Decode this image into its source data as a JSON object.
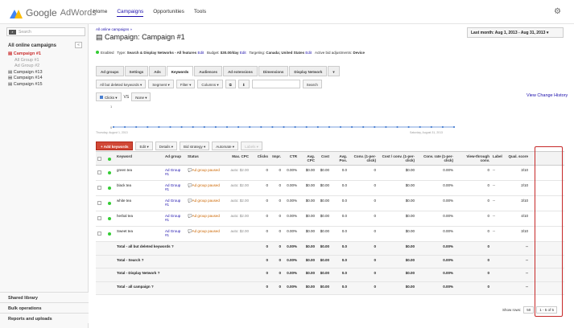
{
  "header": {
    "logo_google": "Google",
    "logo_adwords": "AdWords",
    "nav": [
      "Home",
      "Campaigns",
      "Opportunities",
      "Tools"
    ],
    "active_nav": "Campaigns"
  },
  "sidebar": {
    "search_placeholder": "Search",
    "title": "All online campaigns",
    "collapse": "«",
    "campaigns": [
      {
        "label": "Campaign #1",
        "active": true,
        "adgroups": [
          "All Group #1",
          "Ad Group #2"
        ]
      },
      {
        "label": "Campaign #13",
        "active": false,
        "adgroups": []
      },
      {
        "label": "Campaign #14",
        "active": false,
        "adgroups": []
      },
      {
        "label": "Campaign #15",
        "active": false,
        "adgroups": []
      }
    ],
    "bottom": [
      "Shared library",
      "Bulk operations",
      "Reports and uploads"
    ]
  },
  "main": {
    "breadcrumb": "All online campaigns »",
    "title_prefix": "Campaign:",
    "title": "Campaign #1",
    "date_range": "Last month: Aug 1, 2013 - Aug 31, 2013",
    "status": {
      "enabled": "Enabled",
      "type_label": "Type:",
      "type": "Search & Display Networks - All features",
      "edit1": "Edit",
      "budget_label": "Budget:",
      "budget": "$30.00/day",
      "edit2": "Edit",
      "targeting_label": "Targeting:",
      "targeting": "Canada; United States",
      "edit3": "Edit",
      "active_bid": "Active bid adjustments:",
      "device": "Device"
    },
    "tabs": [
      "Ad groups",
      "Settings",
      "Ads",
      "Keywords",
      "Audiences",
      "Ad extensions",
      "Dimensions",
      "Display Network",
      "▾"
    ],
    "active_tab": "Keywords",
    "toolbar": [
      "All but deleted keywords ▾",
      "Segment ▾",
      "Filter ▾",
      "Columns ▾",
      "⧉",
      "⬇"
    ],
    "search_button": "Search",
    "chart_metric": "Clicks ▾",
    "vs": "VS",
    "compare_metric": "None ▾",
    "view_history": "View Change History",
    "chart_start": "Thursday, August 1, 2013",
    "chart_end": "Saturday, August 31, 2013",
    "actions": {
      "add": "+ Add keywords",
      "edit": "Edit ▾",
      "details": "Details ▾",
      "bid": "Bid strategy ▾",
      "automate": "Automate ▾",
      "labels": "Labels ▾"
    }
  },
  "table": {
    "headers": {
      "keyword": "Keyword",
      "adgroup": "Ad group",
      "status": "Status",
      "maxcpc": "Max. CPC",
      "clicks": "Clicks",
      "impr": "Impr.",
      "ctr": "CTR",
      "avgcpc": "Avg. CPC",
      "cost": "Cost",
      "pos": "Avg. Pos.",
      "conv": "Conv. (1-per-click)",
      "cpc": "Cost / conv. (1-per-click)",
      "rate": "Conv. rate (1-per-click)",
      "vtc": "View-through conv.",
      "labels": "Labels",
      "qs": "Qual. score"
    },
    "rows": [
      {
        "keyword": "green tea",
        "adgroup": "Ad Group #1",
        "status": "Ad group paused",
        "maxcpc": "auto: $2.00",
        "clicks": "0",
        "impr": "0",
        "ctr": "0.00%",
        "avgcpc": "$0.00",
        "cost": "$0.00",
        "pos": "0.0",
        "conv": "0",
        "cpc": "$0.00",
        "rate": "0.00%",
        "vtc": "0",
        "labels": "--",
        "qs": "3/10"
      },
      {
        "keyword": "black tea",
        "adgroup": "Ad Group #1",
        "status": "Ad group paused",
        "maxcpc": "auto: $2.00",
        "clicks": "0",
        "impr": "0",
        "ctr": "0.00%",
        "avgcpc": "$0.00",
        "cost": "$0.00",
        "pos": "0.0",
        "conv": "0",
        "cpc": "$0.00",
        "rate": "0.00%",
        "vtc": "0",
        "labels": "--",
        "qs": "2/10"
      },
      {
        "keyword": "white tea",
        "adgroup": "Ad Group #1",
        "status": "Ad group paused",
        "maxcpc": "auto: $2.00",
        "clicks": "0",
        "impr": "0",
        "ctr": "0.00%",
        "avgcpc": "$0.00",
        "cost": "$0.00",
        "pos": "0.0",
        "conv": "0",
        "cpc": "$0.00",
        "rate": "0.00%",
        "vtc": "0",
        "labels": "--",
        "qs": "3/10"
      },
      {
        "keyword": "herbal tea",
        "adgroup": "Ad Group #1",
        "status": "Ad group paused",
        "maxcpc": "auto: $2.00",
        "clicks": "0",
        "impr": "0",
        "ctr": "0.00%",
        "avgcpc": "$0.00",
        "cost": "$0.00",
        "pos": "0.0",
        "conv": "0",
        "cpc": "$0.00",
        "rate": "0.00%",
        "vtc": "0",
        "labels": "--",
        "qs": "4/10"
      },
      {
        "keyword": "Sweet tea",
        "adgroup": "Ad Group #1",
        "status": "Ad group paused",
        "maxcpc": "auto: $2.00",
        "clicks": "0",
        "impr": "0",
        "ctr": "0.00%",
        "avgcpc": "$0.00",
        "cost": "$0.00",
        "pos": "0.0",
        "conv": "0",
        "cpc": "$0.00",
        "rate": "0.00%",
        "vtc": "0",
        "labels": "--",
        "qs": "3/10"
      }
    ],
    "totals": [
      {
        "label": "Total - all but deleted keywords",
        "clicks": "0",
        "impr": "0",
        "ctr": "0.00%",
        "avgcpc": "$0.00",
        "cost": "$0.00",
        "pos": "0.0",
        "conv": "0",
        "cpc": "$0.00",
        "rate": "0.00%",
        "vtc": "0",
        "qs": "--"
      },
      {
        "label": "Total - Search",
        "clicks": "0",
        "impr": "0",
        "ctr": "0.00%",
        "avgcpc": "$0.00",
        "cost": "$0.00",
        "pos": "0.0",
        "conv": "0",
        "cpc": "$0.00",
        "rate": "0.00%",
        "vtc": "0",
        "qs": "--"
      },
      {
        "label": "Total - Display Network",
        "clicks": "0",
        "impr": "0",
        "ctr": "0.00%",
        "avgcpc": "$0.00",
        "cost": "$0.00",
        "pos": "0.0",
        "conv": "0",
        "cpc": "$0.00",
        "rate": "0.00%",
        "vtc": "0",
        "qs": "--"
      },
      {
        "label": "Total - all campaign",
        "clicks": "0",
        "impr": "0",
        "ctr": "0.00%",
        "avgcpc": "$0.00",
        "cost": "$0.00",
        "pos": "0.0",
        "conv": "0",
        "cpc": "$0.00",
        "rate": "0.00%",
        "vtc": "0",
        "qs": "--"
      }
    ],
    "show_rows_label": "Show rows:",
    "show_rows_value": "50",
    "page_info": "1 - 5 of 5"
  },
  "colors": {
    "accent_red": "#d14836",
    "link": "#1a0dab",
    "status_green": "#33cc33",
    "highlight": "#c62828"
  }
}
